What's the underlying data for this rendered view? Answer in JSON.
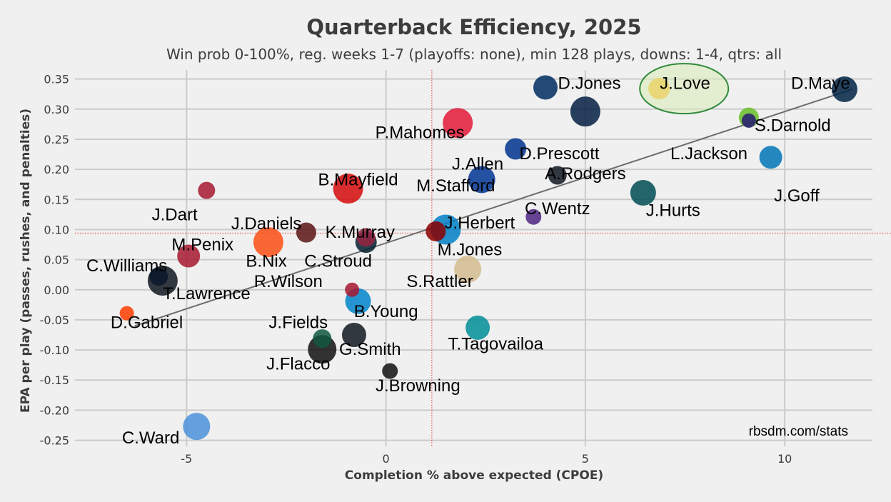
{
  "chart_data": {
    "type": "scatter",
    "title": "Quarterback Efficiency, 2025",
    "subtitle": "Win prob 0-100%, reg. weeks 1-7 (playoffs: none), min 128 plays, downs: 1-4, qtrs: all",
    "xlabel": "Completion % above expected (CPOE)",
    "ylabel": "EPA per play (passes, rushes, and penalties)",
    "source": "rbsdm.com/stats",
    "xlim": [
      -7.8,
      12.2
    ],
    "ylim": [
      -0.26,
      0.365
    ],
    "x_ticks": [
      -5,
      0,
      5,
      10
    ],
    "x_tick_labels": [
      "-5",
      "0",
      "5",
      "10"
    ],
    "y_ticks": [
      0.35,
      0.3,
      0.25,
      0.2,
      0.15,
      0.1,
      0.05,
      0.0,
      -0.05,
      -0.1,
      -0.15,
      -0.2,
      -0.25
    ],
    "y_tick_labels": [
      "0.35",
      "0.30",
      "0.25",
      "0.20",
      "0.15",
      "0.10",
      "0.05",
      "0.00",
      "-0.05",
      "-0.10",
      "-0.15",
      "-0.20",
      "-0.25"
    ],
    "mean_x": 1.15,
    "mean_y": 0.094,
    "trend_line": {
      "x": [
        -6.3,
        11.7
      ],
      "y": [
        -0.06,
        0.333
      ]
    },
    "grid": true,
    "highlight": {
      "player": "J.Love",
      "color": "#2e8b3a"
    },
    "points": [
      {
        "name": "J.Love",
        "x": 6.85,
        "y": 0.334,
        "size": 15,
        "color": "#FFB612",
        "lx": 7.5,
        "ly": 0.343
      },
      {
        "name": "D.Maye",
        "x": 11.5,
        "y": 0.333,
        "size": 18,
        "color": "#002244",
        "lx": 10.9,
        "ly": 0.343
      },
      {
        "name": "D.Jones",
        "x": 4.0,
        "y": 0.336,
        "size": 17,
        "color": "#002C5F",
        "lx": 5.1,
        "ly": 0.343
      },
      {
        "name": "D.Prescott",
        "x": 5.0,
        "y": 0.296,
        "size": 21,
        "color": "#041E42",
        "lx": 4.35,
        "ly": 0.226
      },
      {
        "name": "S.Darnold",
        "x": 9.1,
        "y": 0.286,
        "size": 14,
        "color": "#69BE28",
        "lx": 10.2,
        "ly": 0.273
      },
      {
        "name": "P.Mahomes",
        "x": 1.8,
        "y": 0.277,
        "size": 21,
        "color": "#E31837",
        "lx": 0.85,
        "ly": 0.261
      },
      {
        "name": "L.Jackson",
        "x": 9.1,
        "y": 0.281,
        "size": 10,
        "color": "#241773",
        "lx": 8.1,
        "ly": 0.226
      },
      {
        "name": "J.Allen",
        "x": 3.25,
        "y": 0.234,
        "size": 15,
        "color": "#00338D",
        "lx": 2.3,
        "ly": 0.209
      },
      {
        "name": "J.Goff",
        "x": 9.65,
        "y": 0.22,
        "size": 16,
        "color": "#0076B6",
        "lx": 10.3,
        "ly": 0.156
      },
      {
        "name": "A.Rodgers",
        "x": 4.3,
        "y": 0.19,
        "size": 13,
        "color": "#101820",
        "lx": 5.0,
        "ly": 0.193
      },
      {
        "name": "M.Stafford",
        "x": 2.4,
        "y": 0.183,
        "size": 19,
        "color": "#003594",
        "lx": 1.75,
        "ly": 0.173
      },
      {
        "name": "B.Mayfield",
        "x": -0.95,
        "y": 0.168,
        "size": 21,
        "color": "#D50A0A",
        "lx": -0.7,
        "ly": 0.183
      },
      {
        "name": "J.Dart",
        "x": -4.5,
        "y": 0.165,
        "size": 12,
        "color": "#A71930",
        "lx": -5.3,
        "ly": 0.125
      },
      {
        "name": "J.Hurts",
        "x": 6.45,
        "y": 0.161,
        "size": 18,
        "color": "#004C54",
        "lx": 7.2,
        "ly": 0.132
      },
      {
        "name": "C.Wentz",
        "x": 3.7,
        "y": 0.121,
        "size": 11,
        "color": "#4F2683",
        "lx": 4.3,
        "ly": 0.135
      },
      {
        "name": "J.Herbert",
        "x": 1.5,
        "y": 0.1,
        "size": 21,
        "color": "#0080C6",
        "lx": 2.35,
        "ly": 0.111
      },
      {
        "name": "M.Jones",
        "x": 1.25,
        "y": 0.097,
        "size": 14,
        "color": "#8B0000",
        "lx": 2.1,
        "ly": 0.067
      },
      {
        "name": "K.Murray",
        "x": -0.5,
        "y": 0.087,
        "size": 13,
        "color": "#97233F",
        "lx": -0.65,
        "ly": 0.096
      },
      {
        "name": "C.Stroud",
        "x": -0.5,
        "y": 0.079,
        "size": 15,
        "color": "#03202F",
        "lx": -1.2,
        "ly": 0.048
      },
      {
        "name": "J.Daniels",
        "x": -2.0,
        "y": 0.095,
        "size": 14,
        "color": "#5A1414",
        "lx": -3.0,
        "ly": 0.11
      },
      {
        "name": "B.Nix",
        "x": -2.95,
        "y": 0.079,
        "size": 21,
        "color": "#FB4F14",
        "lx": -3.0,
        "ly": 0.048
      },
      {
        "name": "M.Penix",
        "x": -4.95,
        "y": 0.056,
        "size": 16,
        "color": "#A71930",
        "lx": -4.6,
        "ly": 0.075
      },
      {
        "name": "C.Williams",
        "x": -5.7,
        "y": 0.022,
        "size": 13,
        "color": "#0B162A",
        "lx": -6.5,
        "ly": 0.04
      },
      {
        "name": "T.Lawrence",
        "x": -5.6,
        "y": 0.015,
        "size": 21,
        "color": "#101820",
        "lx": -4.5,
        "ly": -0.006
      },
      {
        "name": "S.Rattler",
        "x": 2.05,
        "y": 0.034,
        "size": 19,
        "color": "#D3BC8D",
        "lx": 1.35,
        "ly": 0.014
      },
      {
        "name": "R.Wilson",
        "x": -0.85,
        "y": 0.0,
        "size": 10,
        "color": "#A71930",
        "lx": -2.45,
        "ly": 0.014
      },
      {
        "name": "B.Young",
        "x": -0.7,
        "y": -0.019,
        "size": 18,
        "color": "#0085CA",
        "lx": 0.0,
        "ly": -0.036
      },
      {
        "name": "D.Gabriel",
        "x": -6.5,
        "y": -0.039,
        "size": 10,
        "color": "#FF3C00",
        "lx": -6.0,
        "ly": -0.054
      },
      {
        "name": "J.Fields",
        "x": -1.6,
        "y": -0.081,
        "size": 13,
        "color": "#125740",
        "lx": -2.2,
        "ly": -0.054
      },
      {
        "name": "G.Smith",
        "x": -0.8,
        "y": -0.075,
        "size": 17,
        "color": "#101820",
        "lx": -0.4,
        "ly": -0.099
      },
      {
        "name": "T.Tagovailoa",
        "x": 2.3,
        "y": -0.063,
        "size": 17,
        "color": "#008E97",
        "lx": 2.75,
        "ly": -0.09
      },
      {
        "name": "J.Flacco",
        "x": -1.6,
        "y": -0.099,
        "size": 20,
        "color": "#111111",
        "lx": -2.2,
        "ly": -0.123
      },
      {
        "name": "J.Browning",
        "x": 0.1,
        "y": -0.135,
        "size": 11,
        "color": "#111111",
        "lx": 0.8,
        "ly": -0.159
      },
      {
        "name": "C.Ward",
        "x": -4.75,
        "y": -0.227,
        "size": 19,
        "color": "#4B92DB",
        "lx": -5.9,
        "ly": -0.246
      }
    ]
  }
}
